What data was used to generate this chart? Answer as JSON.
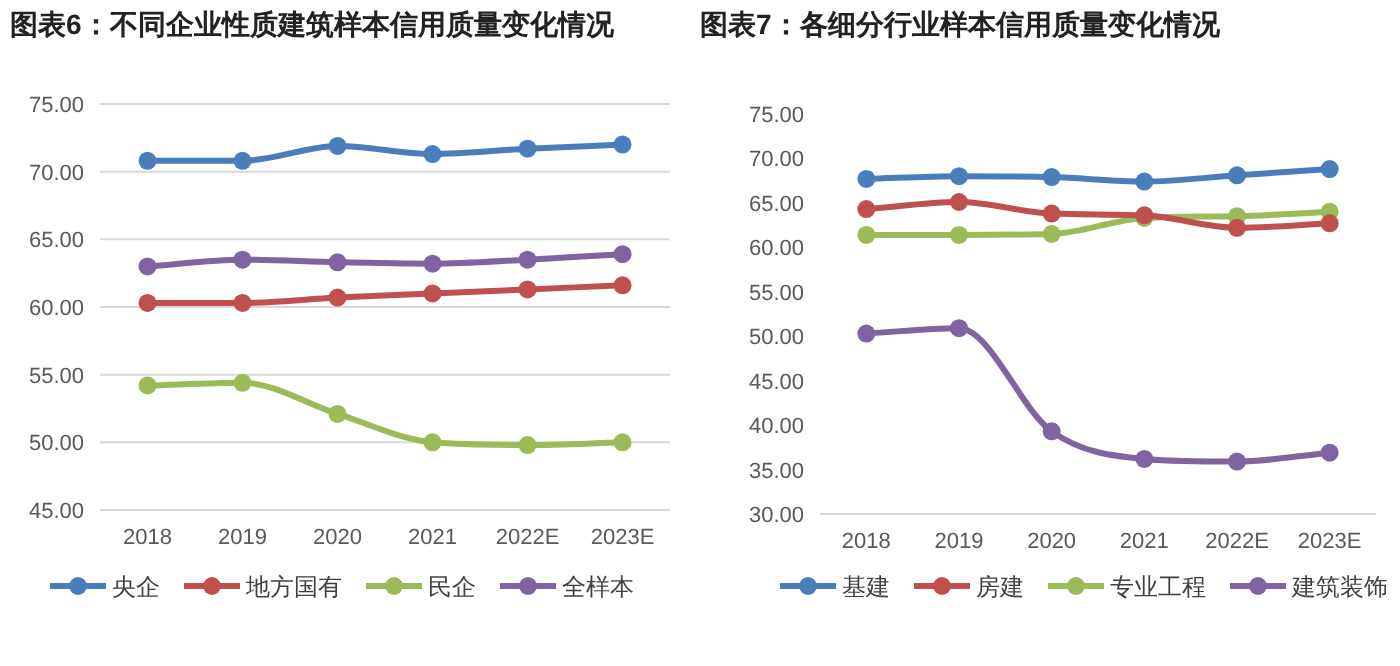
{
  "chart_data": [
    {
      "type": "line",
      "title": "图表6：不同企业性质建筑样本信用质量变化情况",
      "categories": [
        "2018",
        "2019",
        "2020",
        "2021",
        "2022E",
        "2023E"
      ],
      "ylim": [
        45,
        75
      ],
      "yticks": [
        {
          "value": 45,
          "label": "45.00"
        },
        {
          "value": 50,
          "label": "50.00"
        },
        {
          "value": 55,
          "label": "55.00"
        },
        {
          "value": 60,
          "label": "60.00"
        },
        {
          "value": 65,
          "label": "65.00"
        },
        {
          "value": 70,
          "label": "70.00"
        },
        {
          "value": 75,
          "label": "75.00"
        }
      ],
      "grid": "y",
      "legend": "bottom",
      "marker": "circle",
      "line_style": "solid",
      "series": [
        {
          "name": "央企",
          "color": "#4a7ebb",
          "values": [
            70.8,
            70.8,
            71.9,
            71.3,
            71.7,
            72.0
          ]
        },
        {
          "name": "地方国有",
          "color": "#c0504d",
          "values": [
            60.3,
            60.3,
            60.7,
            61.0,
            61.3,
            61.6
          ]
        },
        {
          "name": "民企",
          "color": "#9bbb59",
          "values": [
            54.2,
            54.4,
            52.1,
            50.0,
            49.8,
            50.0
          ]
        },
        {
          "name": "全样本",
          "color": "#8064a2",
          "values": [
            63.0,
            63.5,
            63.3,
            63.2,
            63.5,
            63.9
          ]
        }
      ]
    },
    {
      "type": "line",
      "title": "图表7：各细分行业样本信用质量变化情况",
      "categories": [
        "2018",
        "2019",
        "2020",
        "2021",
        "2022E",
        "2023E"
      ],
      "ylim": [
        30,
        75
      ],
      "yticks": [
        {
          "value": 30,
          "label": "30.00"
        },
        {
          "value": 35,
          "label": "35.00"
        },
        {
          "value": 40,
          "label": "40.00"
        },
        {
          "value": 45,
          "label": "45.00"
        },
        {
          "value": 50,
          "label": "50.00"
        },
        {
          "value": 55,
          "label": "55.00"
        },
        {
          "value": 60,
          "label": "60.00"
        },
        {
          "value": 65,
          "label": "65.00"
        },
        {
          "value": 70,
          "label": "70.00"
        },
        {
          "value": 75,
          "label": "75.00"
        }
      ],
      "grid": false,
      "legend": "bottom",
      "marker": "circle",
      "line_style": "solid",
      "series": [
        {
          "name": "基建",
          "color": "#4a7ebb",
          "values": [
            67.7,
            68.0,
            67.9,
            67.4,
            68.1,
            68.8
          ]
        },
        {
          "name": "房建",
          "color": "#c0504d",
          "values": [
            64.3,
            65.1,
            63.8,
            63.6,
            62.2,
            62.7
          ]
        },
        {
          "name": "专业工程",
          "color": "#9bbb59",
          "values": [
            61.4,
            61.4,
            61.5,
            63.3,
            63.5,
            64.0
          ]
        },
        {
          "name": "建筑装饰",
          "color": "#8064a2",
          "values": [
            50.3,
            50.9,
            39.3,
            36.2,
            35.9,
            36.9
          ]
        }
      ]
    }
  ]
}
